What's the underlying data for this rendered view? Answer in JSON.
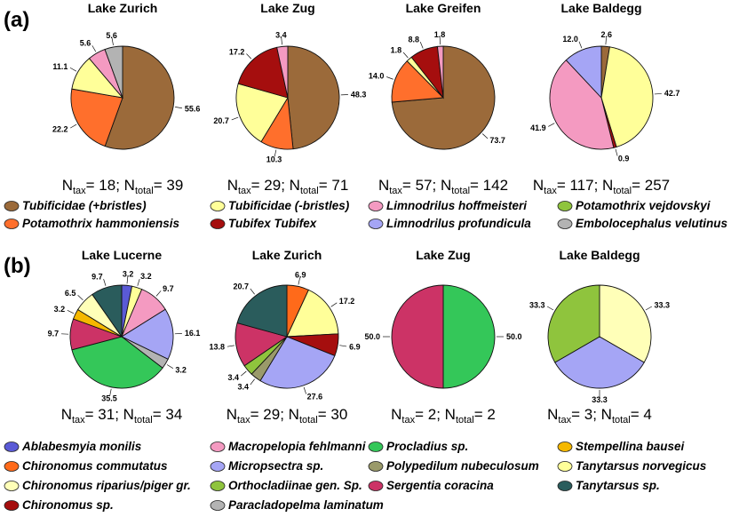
{
  "panels": [
    {
      "label": "(a)",
      "charts": [
        {
          "type": "pie",
          "title": "Lake Zurich",
          "slices": [
            {
              "taxon": "Tubificidae (+bristles)",
              "value": 55.6,
              "label": "55.6"
            },
            {
              "taxon": "Potamothrix hammoniensis",
              "value": 22.2,
              "label": "22.2"
            },
            {
              "taxon": "Tubificidae (-bristles)",
              "value": 11.1,
              "label": "11.1"
            },
            {
              "taxon": "Limnodrilus hoffmeisteri",
              "value": 5.6,
              "label": "5.6"
            },
            {
              "taxon": "Embolocephalus velutinus",
              "value": 5.6,
              "label": "5.6"
            }
          ],
          "n_tax": "18",
          "n_total": "39"
        },
        {
          "type": "pie",
          "title": "Lake Zug",
          "slices": [
            {
              "taxon": "Tubificidae (+bristles)",
              "value": 48.3,
              "label": "48.3"
            },
            {
              "taxon": "Potamothrix hammoniensis",
              "value": 10.3,
              "label": "10.3"
            },
            {
              "taxon": "Tubificidae (-bristles)",
              "value": 20.7,
              "label": "20.7"
            },
            {
              "taxon": "Tubifex Tubifex",
              "value": 17.2,
              "label": "17.2"
            },
            {
              "taxon": "Limnodrilus hoffmeisteri",
              "value": 3.4,
              "label": "3.4"
            }
          ],
          "n_tax": "29",
          "n_total": "71"
        },
        {
          "type": "pie",
          "title": "Lake Greifen",
          "slices": [
            {
              "taxon": "Tubificidae (+bristles)",
              "value": 73.7,
              "label": "73.7"
            },
            {
              "taxon": "Potamothrix hammoniensis",
              "value": 14.0,
              "label": "14.0"
            },
            {
              "taxon": "Tubificidae (-bristles)",
              "value": 1.8,
              "label": "1.8"
            },
            {
              "taxon": "Tubifex Tubifex",
              "value": 8.8,
              "label": "8.8"
            },
            {
              "taxon": "Limnodrilus hoffmeisteri",
              "value": 1.8,
              "label": "1.8"
            }
          ],
          "n_tax": "57",
          "n_total": "142"
        },
        {
          "type": "pie",
          "title": "Lake Baldegg",
          "slices": [
            {
              "taxon": "Tubificidae (+bristles)",
              "value": 2.6,
              "label": "2.6"
            },
            {
              "taxon": "Tubificidae (-bristles)",
              "value": 42.7,
              "label": "42.7"
            },
            {
              "taxon": "Tubifex Tubifex",
              "value": 0.9,
              "label": "0.9"
            },
            {
              "taxon": "Limnodrilus hoffmeisteri",
              "value": 41.9,
              "label": "41.9"
            },
            {
              "taxon": "Limnodrilus profundicula",
              "value": 12.0,
              "label": "12.0"
            }
          ],
          "n_tax": "117",
          "n_total": "257"
        }
      ],
      "legend": [
        {
          "taxon": "Tubificidae (+bristles)",
          "color": "#9b6a3a"
        },
        {
          "taxon": "Tubificidae (-bristles)",
          "color": "#ffff99"
        },
        {
          "taxon": "Limnodrilus hoffmeisteri",
          "color": "#f49ac1"
        },
        {
          "taxon": "Potamothrix vejdovskyi",
          "color": "#8fc43d"
        },
        {
          "taxon": "Potamothrix hammoniensis",
          "color": "#ff6f2c"
        },
        {
          "taxon": "Tubifex Tubifex",
          "color": "#a50e0e"
        },
        {
          "taxon": "Limnodrilus profundicula",
          "color": "#a5a5f5"
        },
        {
          "taxon": "Embolocephalus velutinus",
          "color": "#b3b3b3"
        }
      ]
    },
    {
      "label": "(b)",
      "charts": [
        {
          "type": "pie",
          "title": "Lake Lucerne",
          "slices": [
            {
              "taxon": "Ablabesmyia monilis",
              "value": 3.2,
              "label": "3.2"
            },
            {
              "taxon": "Tanytarsus norvegicus",
              "value": 3.2,
              "label": "3.2"
            },
            {
              "taxon": "Macropelopia fehlmanni",
              "value": 9.7,
              "label": "9.7"
            },
            {
              "taxon": "Micropsectra sp.",
              "value": 16.1,
              "label": "16.1"
            },
            {
              "taxon": "Paracladopelma laminatum",
              "value": 3.2,
              "label": "3.2"
            },
            {
              "taxon": "Procladius sp.",
              "value": 35.5,
              "label": "35.5"
            },
            {
              "taxon": "Sergentia coracina",
              "value": 9.7,
              "label": "9.7"
            },
            {
              "taxon": "Stempellina bausei",
              "value": 3.2,
              "label": "3.2"
            },
            {
              "taxon": "Chironomus riparius/piger gr.",
              "value": 6.5,
              "label": "6.5"
            },
            {
              "taxon": "Tanytarsus sp.",
              "value": 9.7,
              "label": "9.7"
            }
          ],
          "n_tax": "31",
          "n_total": "34"
        },
        {
          "type": "pie",
          "title": "Lake Zurich",
          "slices": [
            {
              "taxon": "Chironomus commutatus",
              "value": 6.9,
              "label": "6.9"
            },
            {
              "taxon": "Tanytarsus norvegicus",
              "value": 17.2,
              "label": "17.2"
            },
            {
              "taxon": "Chironomus sp.",
              "value": 6.9,
              "label": "6.9"
            },
            {
              "taxon": "Micropsectra sp.",
              "value": 27.6,
              "label": "27.6"
            },
            {
              "taxon": "Polypedilum nubeculosum",
              "value": 3.4,
              "label": "3.4"
            },
            {
              "taxon": "Orthocladiinae gen. Sp.",
              "value": 3.4,
              "label": "3.4"
            },
            {
              "taxon": "Sergentia coracina",
              "value": 13.8,
              "label": "13.8"
            },
            {
              "taxon": "Tanytarsus sp.",
              "value": 20.7,
              "label": "20.7"
            }
          ],
          "n_tax": "29",
          "n_total": "30"
        },
        {
          "type": "pie",
          "title": "Lake Zug",
          "slices": [
            {
              "taxon": "Procladius sp.",
              "value": 50.0,
              "label": "50.0"
            },
            {
              "taxon": "Sergentia coracina",
              "value": 50.0,
              "label": "50.0"
            }
          ],
          "n_tax": "2",
          "n_total": "2"
        },
        {
          "type": "pie",
          "title": "Lake Baldegg",
          "slices": [
            {
              "taxon": "Chironomus riparius/piger gr.",
              "value": 33.3,
              "label": "33.3"
            },
            {
              "taxon": "Micropsectra sp.",
              "value": 33.3,
              "label": "33.3"
            },
            {
              "taxon": "Orthocladiinae gen. Sp.",
              "value": 33.3,
              "label": "33.3"
            }
          ],
          "n_tax": "3",
          "n_total": "4"
        }
      ],
      "legend": [
        {
          "taxon": "Ablabesmyia monilis",
          "color": "#5a5ad6"
        },
        {
          "taxon": "Macropelopia fehlmanni",
          "color": "#f49ac1"
        },
        {
          "taxon": "Procladius sp.",
          "color": "#34c759"
        },
        {
          "taxon": "Stempellina bausei",
          "color": "#f5b800"
        },
        {
          "taxon": "Chironomus commutatus",
          "color": "#ff6a1a"
        },
        {
          "taxon": "Micropsectra sp.",
          "color": "#a5a5f5"
        },
        {
          "taxon": "Polypedilum nubeculosum",
          "color": "#9a9a6a"
        },
        {
          "taxon": "Tanytarsus norvegicus",
          "color": "#ffff99"
        },
        {
          "taxon": "Chironomus riparius/piger gr.",
          "color": "#ffffb8"
        },
        {
          "taxon": "Orthocladiinae gen. Sp.",
          "color": "#8fc43d"
        },
        {
          "taxon": "Sergentia coracina",
          "color": "#cc3366"
        },
        {
          "taxon": "Tanytarsus sp.",
          "color": "#2a5c5c"
        },
        {
          "taxon": "Chironomus sp.",
          "color": "#a50e0e"
        },
        {
          "taxon": "Paracladopelma laminatum",
          "color": "#b3b3b3"
        }
      ]
    }
  ],
  "n_labels": {
    "n": "N",
    "tax": "tax",
    "total": "total",
    "sep": "; ",
    "eq": "= "
  }
}
